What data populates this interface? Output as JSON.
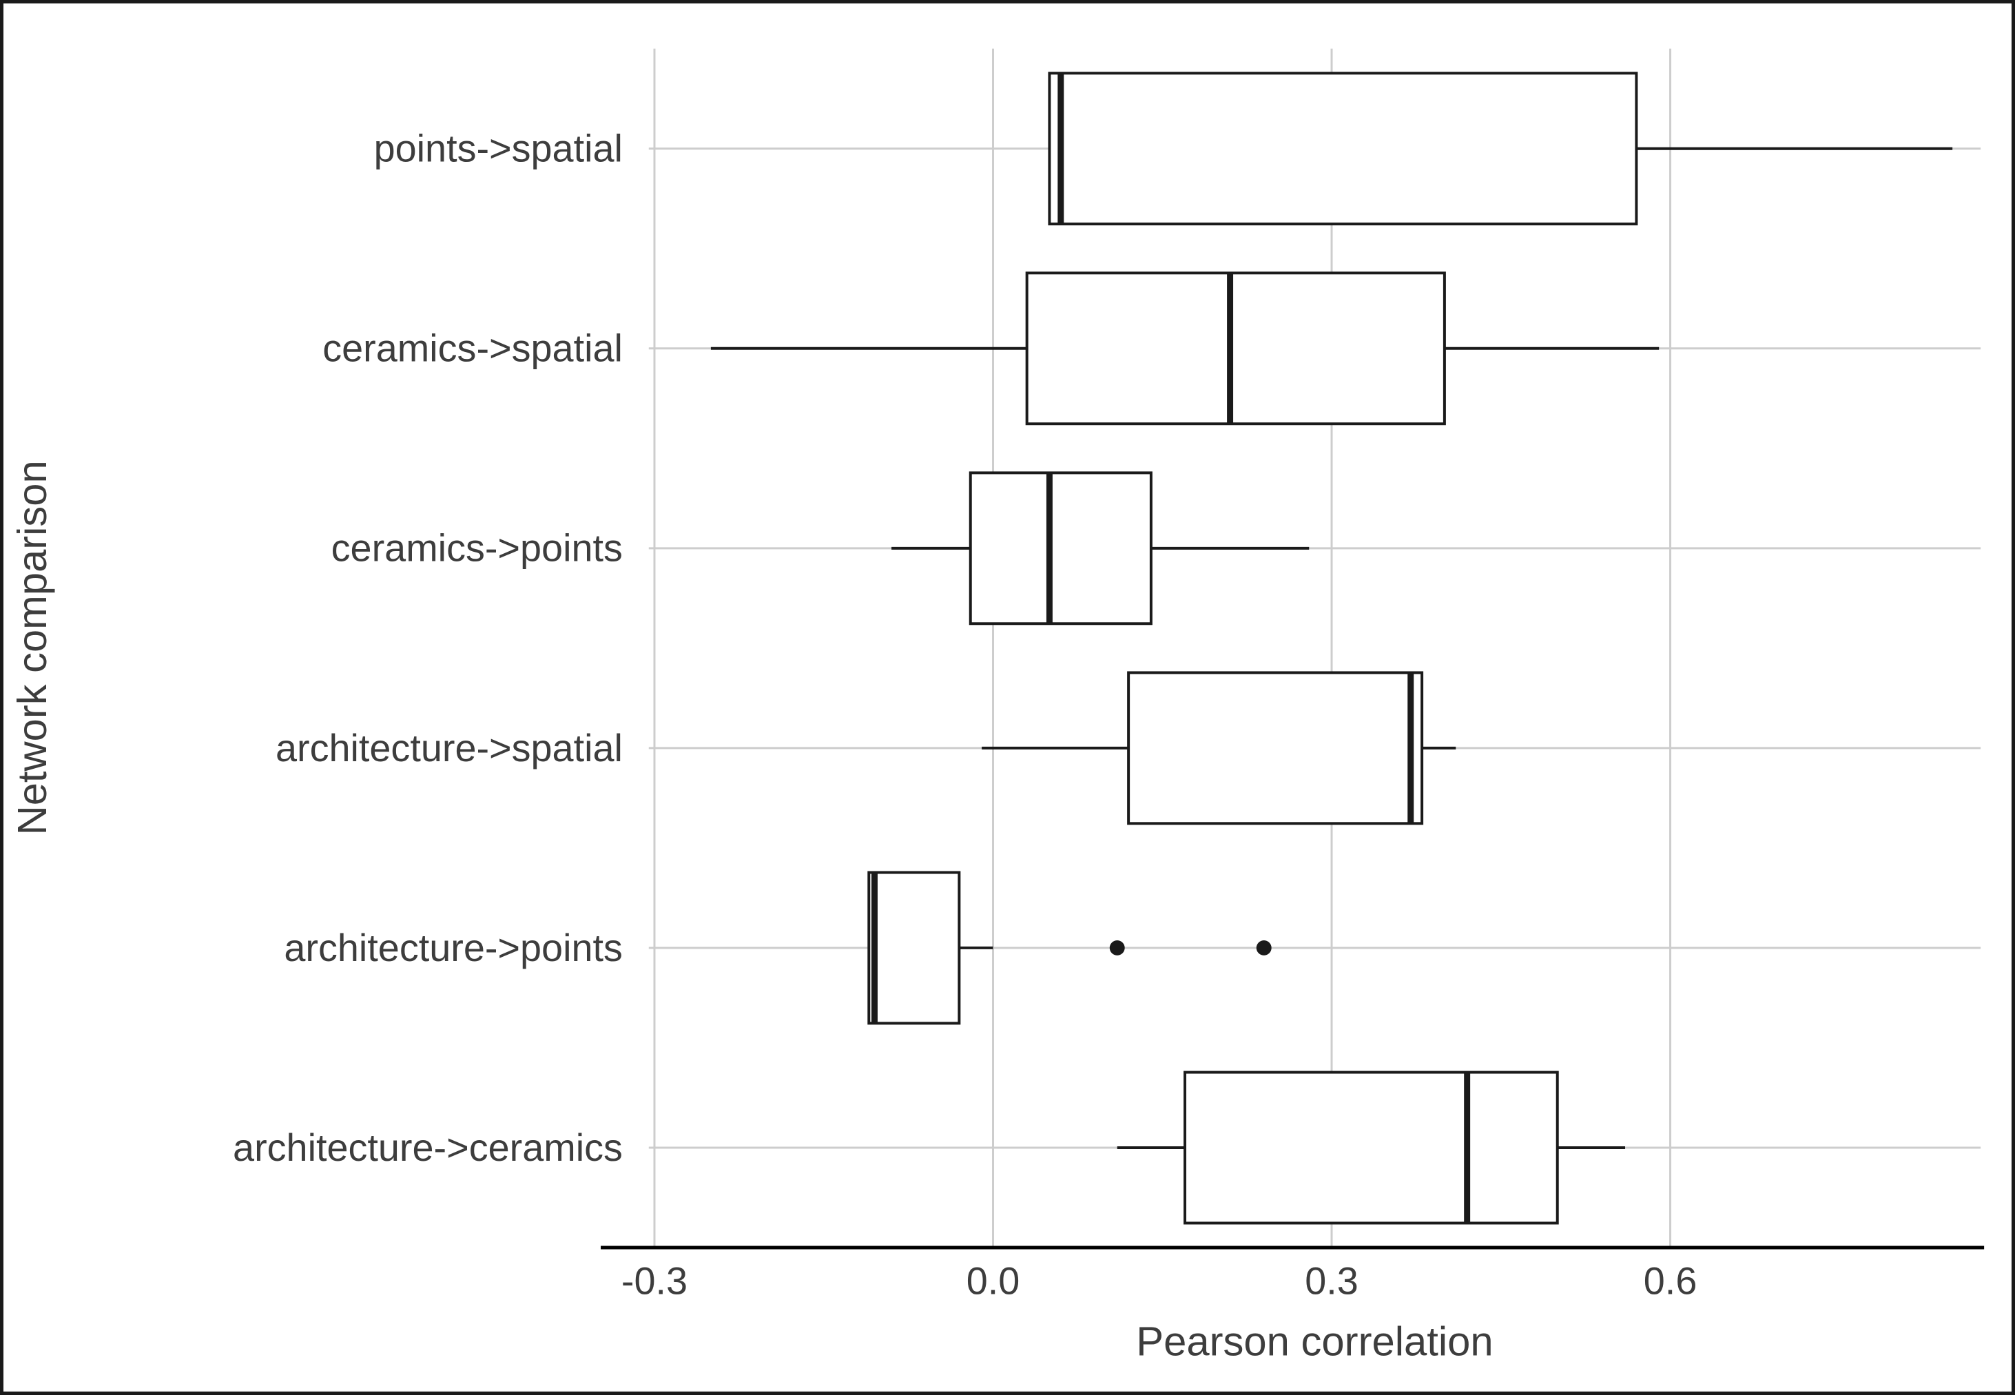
{
  "chart_data": {
    "type": "boxplot",
    "orientation": "horizontal",
    "title": "",
    "xlabel": "Pearson correlation",
    "ylabel": "Network comparison",
    "xlim": [
      -0.305,
      0.875
    ],
    "x_ticks": [
      -0.3,
      0.0,
      0.3,
      0.6
    ],
    "x_tick_labels": [
      "-0.3",
      "0.0",
      "0.3",
      "0.6"
    ],
    "grid": true,
    "legend": "none",
    "categories": [
      "points->spatial",
      "ceramics->spatial",
      "ceramics->points",
      "architecture->spatial",
      "architecture->points",
      "architecture->ceramics"
    ],
    "boxes": [
      {
        "label": "points->spatial",
        "whisker_low": 0.05,
        "q1": 0.05,
        "median": 0.06,
        "q3": 0.57,
        "whisker_high": 0.85,
        "outliers": []
      },
      {
        "label": "ceramics->spatial",
        "whisker_low": -0.25,
        "q1": 0.03,
        "median": 0.21,
        "q3": 0.4,
        "whisker_high": 0.59,
        "outliers": []
      },
      {
        "label": "ceramics->points",
        "whisker_low": -0.09,
        "q1": -0.02,
        "median": 0.05,
        "q3": 0.14,
        "whisker_high": 0.28,
        "outliers": []
      },
      {
        "label": "architecture->spatial",
        "whisker_low": -0.01,
        "q1": 0.12,
        "median": 0.37,
        "q3": 0.38,
        "whisker_high": 0.41,
        "outliers": []
      },
      {
        "label": "architecture->points",
        "whisker_low": -0.11,
        "q1": -0.11,
        "median": -0.105,
        "q3": -0.03,
        "whisker_high": 0.0,
        "outliers": [
          0.11,
          0.24
        ]
      },
      {
        "label": "architecture->ceramics",
        "whisker_low": 0.11,
        "q1": 0.17,
        "median": 0.42,
        "q3": 0.5,
        "whisker_high": 0.56,
        "outliers": []
      }
    ],
    "colors": {
      "box_fill": "#ffffff",
      "box_stroke": "#1a1a1a",
      "median": "#1a1a1a",
      "whisker": "#1a1a1a",
      "outlier": "#1a1a1a",
      "grid": "#cdcdcd",
      "axis_line": "#000000",
      "text": "#3d3d3d",
      "background": "#ffffff"
    }
  }
}
